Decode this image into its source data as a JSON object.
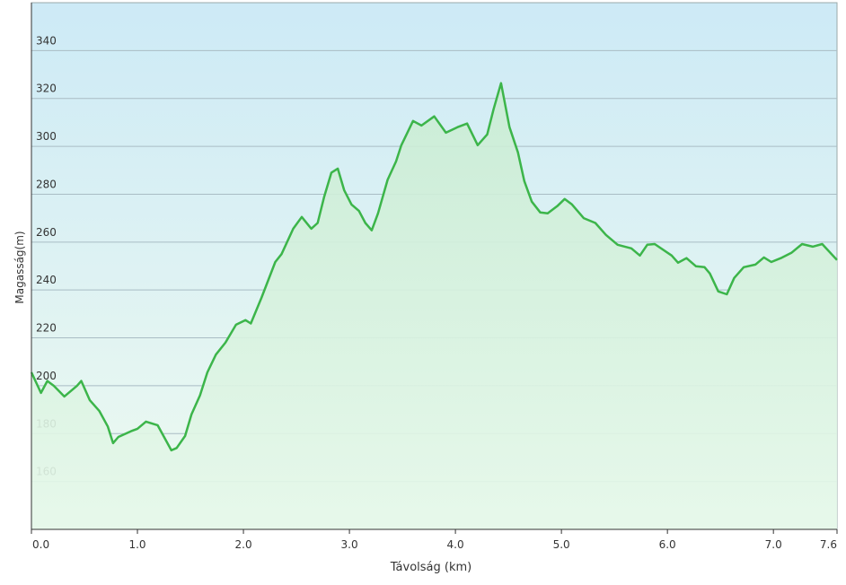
{
  "chart_data": {
    "type": "area",
    "x_label": "Távolság (km)",
    "y_label": "Magasság(m)",
    "color": "#3cb54a",
    "grid": true,
    "xlim": [
      0,
      7.6
    ],
    "ylim": [
      140,
      360
    ],
    "xticks": [
      {
        "value": 0,
        "label": "0.0"
      },
      {
        "value": 1,
        "label": "1.0"
      },
      {
        "value": 2,
        "label": "2.0"
      },
      {
        "value": 3,
        "label": "3.0"
      },
      {
        "value": 4,
        "label": "4.0"
      },
      {
        "value": 5,
        "label": "5.0"
      },
      {
        "value": 6,
        "label": "6.0"
      },
      {
        "value": 7,
        "label": "7.0"
      },
      7.6
    ],
    "yticks": [
      160,
      180,
      200,
      220,
      240,
      260,
      280,
      300,
      320,
      340
    ],
    "x": [
      0,
      0.09,
      0.15,
      0.21,
      0.31,
      0.43,
      0.47,
      0.55,
      0.64,
      0.72,
      0.77,
      0.82,
      0.94,
      1.0,
      1.08,
      1.19,
      1.32,
      1.37,
      1.45,
      1.51,
      1.59,
      1.66,
      1.74,
      1.83,
      1.93,
      2.02,
      2.07,
      2.17,
      2.3,
      2.36,
      2.47,
      2.55,
      2.64,
      2.7,
      2.76,
      2.83,
      2.89,
      2.95,
      3.02,
      3.09,
      3.15,
      3.21,
      3.27,
      3.36,
      3.44,
      3.49,
      3.6,
      3.68,
      3.8,
      3.91,
      4.02,
      4.11,
      4.21,
      4.3,
      4.36,
      4.43,
      4.51,
      4.59,
      4.65,
      4.72,
      4.8,
      4.87,
      4.96,
      5.03,
      5.1,
      5.21,
      5.32,
      5.42,
      5.53,
      5.66,
      5.74,
      5.81,
      5.88,
      6.04,
      6.1,
      6.18,
      6.27,
      6.35,
      6.4,
      6.48,
      6.56,
      6.63,
      6.72,
      6.83,
      6.91,
      6.98,
      7.07,
      7.17,
      7.27,
      7.37,
      7.46,
      7.6
    ],
    "values": [
      205.6,
      197,
      202,
      200,
      195.5,
      200,
      202,
      194,
      189.5,
      183,
      176,
      178.6,
      181,
      182,
      185,
      183.5,
      173,
      174,
      179,
      188,
      196,
      205.6,
      213,
      218,
      225.5,
      227.4,
      226,
      236.7,
      251.7,
      255,
      265.6,
      270.5,
      265.6,
      268,
      278.7,
      289,
      290.7,
      281.7,
      275.7,
      273,
      268,
      264.9,
      272,
      286,
      293.7,
      300.5,
      310.6,
      308.7,
      312.5,
      305.7,
      308,
      309.5,
      300.5,
      305,
      315.5,
      326.4,
      308,
      297.5,
      285.5,
      276.9,
      272.4,
      272,
      275,
      278,
      275.7,
      270,
      268,
      263,
      258.9,
      257.4,
      254.4,
      258.9,
      259.2,
      254.4,
      251.4,
      253.3,
      249.9,
      249.5,
      246.9,
      239.4,
      238.2,
      245,
      249.5,
      250.6,
      253.6,
      251.7,
      253.3,
      255.5,
      259.2,
      258.1,
      259.2,
      252.5
    ]
  }
}
